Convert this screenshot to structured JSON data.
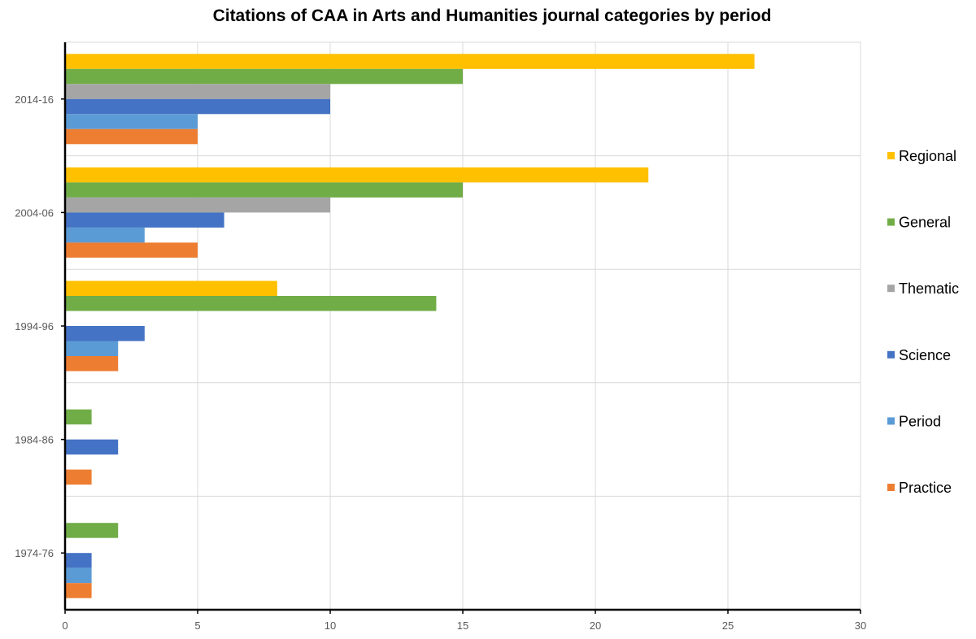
{
  "chart_data": {
    "type": "bar",
    "orientation": "horizontal",
    "title": "Citations of CAA in Arts and Humanities journal categories by period",
    "xlabel": "",
    "ylabel": "",
    "xlim": [
      0,
      30
    ],
    "xticks": [
      0,
      5,
      10,
      15,
      20,
      25,
      30
    ],
    "grid": true,
    "legend_position": "right",
    "categories": [
      "2014-16",
      "2004-06",
      "1994-96",
      "1984-86",
      "1974-76"
    ],
    "series": [
      {
        "name": "Regional",
        "color": "#FFC000",
        "values": [
          26,
          22,
          8,
          0,
          0
        ]
      },
      {
        "name": "General",
        "color": "#70AD47",
        "values": [
          15,
          15,
          14,
          1,
          2
        ]
      },
      {
        "name": "Thematic",
        "color": "#A5A5A5",
        "values": [
          10,
          10,
          0,
          0,
          0
        ]
      },
      {
        "name": "Science",
        "color": "#4472C4",
        "values": [
          10,
          6,
          3,
          2,
          1
        ]
      },
      {
        "name": "Period",
        "color": "#5B9BD5",
        "values": [
          5,
          3,
          2,
          0,
          1
        ]
      },
      {
        "name": "Practice",
        "color": "#ED7D31",
        "values": [
          5,
          5,
          2,
          1,
          1
        ]
      }
    ]
  }
}
